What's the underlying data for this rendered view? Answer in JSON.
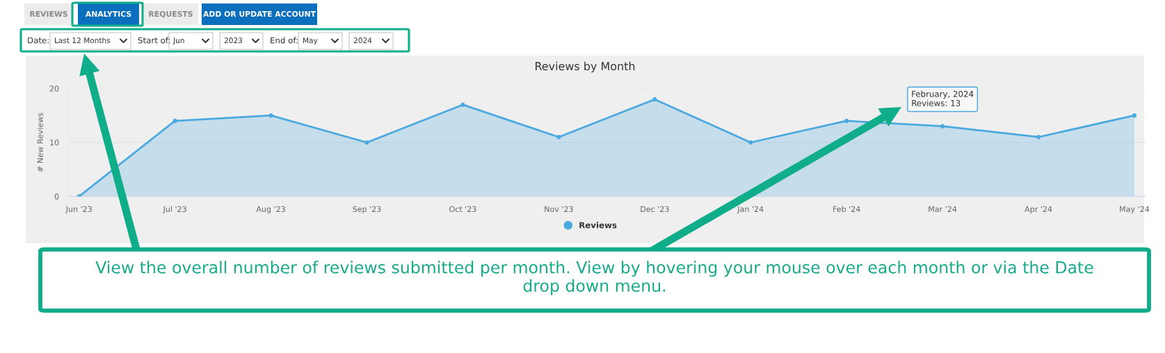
{
  "chart_data": {
    "type": "area",
    "title": "Reviews by Month",
    "ylabel": "# New Reviews",
    "categories": [
      "Jun '23",
      "Jul '23",
      "Aug '23",
      "Sep '23",
      "Oct '23",
      "Nov '23",
      "Dec '23",
      "Jan '24",
      "Feb '24",
      "Mar '24",
      "Apr '24",
      "May '24"
    ],
    "series": [
      {
        "name": "Reviews",
        "color": "#4aa9df",
        "values": [
          0,
          14,
          15,
          10,
          17,
          11,
          18,
          10,
          14,
          13,
          11,
          15
        ]
      }
    ],
    "ylim": [
      0,
      20
    ],
    "yticks": [
      0,
      10,
      20
    ],
    "grid": "y",
    "legend": "bottom",
    "marker": "circle",
    "annotations": [
      "REVIEWS",
      "ANALYTICS",
      "REQUESTS",
      "ADD OR UPDATE ACCOUNT",
      "Date:",
      "Last 12 Months",
      "Start of:",
      "Jun",
      "2023",
      "End of:",
      "May",
      "2024",
      {
        "text": "February, 2024\nReviews: 13",
        "x": "Mar '24",
        "y": 13
      },
      "View the overall number of reviews submitted per month. View by hovering your mouse over each month or via the Date\ndrop down menu."
    ]
  }
}
